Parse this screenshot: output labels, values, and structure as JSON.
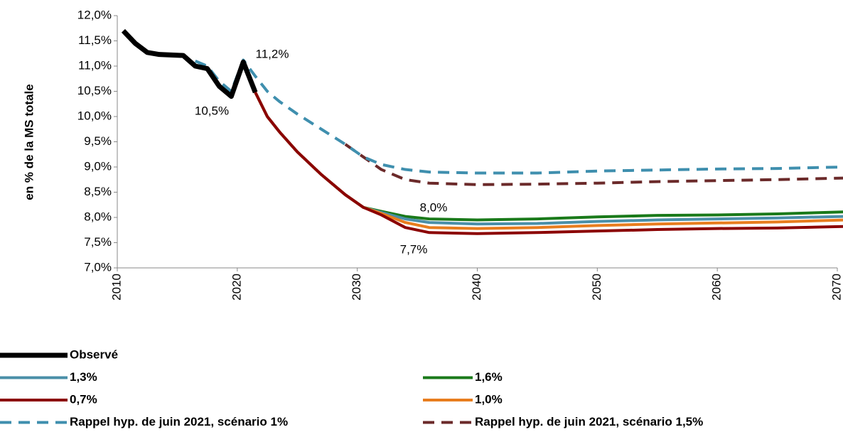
{
  "chart_data": {
    "type": "line",
    "y_label": "en % de la MS totale",
    "x": [
      2010.5,
      2011.5,
      2012.5,
      2013.5,
      2014.5,
      2015.5,
      2016.5,
      2017.5,
      2018.5,
      2019.5,
      2020.5,
      2021.5,
      2022.5,
      2023.5,
      2025,
      2027,
      2029,
      2030.5,
      2032,
      2034,
      2036,
      2040,
      2045,
      2050,
      2055,
      2060,
      2065,
      2070.5
    ],
    "series": [
      {
        "name": "Observé",
        "color": "#000000",
        "dashed": false,
        "values": [
          11.7,
          11.45,
          11.27,
          11.23,
          11.22,
          11.21,
          11.0,
          10.95,
          10.6,
          10.4,
          11.08,
          10.48,
          null,
          null,
          null,
          null,
          null,
          null,
          null,
          null,
          null,
          null,
          null,
          null,
          null,
          null,
          null,
          null
        ]
      },
      {
        "name": "1,6%",
        "color": "#1a7a1a",
        "dashed": false,
        "values": [
          null,
          null,
          null,
          null,
          null,
          null,
          null,
          null,
          null,
          null,
          null,
          10.48,
          10.0,
          9.7,
          9.3,
          8.85,
          8.45,
          8.2,
          8.12,
          8.02,
          7.97,
          7.95,
          7.97,
          8.01,
          8.04,
          8.05,
          8.07,
          8.11
        ]
      },
      {
        "name": "1,3%",
        "color": "#4a8fa8",
        "dashed": false,
        "values": [
          null,
          null,
          null,
          null,
          null,
          null,
          null,
          null,
          null,
          null,
          null,
          10.48,
          10.0,
          9.7,
          9.3,
          8.85,
          8.45,
          8.2,
          8.1,
          7.97,
          7.9,
          7.87,
          7.88,
          7.92,
          7.95,
          7.97,
          7.99,
          8.02
        ]
      },
      {
        "name": "1,0%",
        "color": "#e87d1e",
        "dashed": false,
        "values": [
          null,
          null,
          null,
          null,
          null,
          null,
          null,
          null,
          null,
          null,
          null,
          10.48,
          10.0,
          9.7,
          9.3,
          8.85,
          8.45,
          8.2,
          8.08,
          7.9,
          7.8,
          7.78,
          7.8,
          7.84,
          7.87,
          7.89,
          7.91,
          7.95
        ]
      },
      {
        "name": "0,7%",
        "color": "#8b0000",
        "dashed": false,
        "values": [
          null,
          null,
          null,
          null,
          null,
          null,
          null,
          null,
          null,
          null,
          null,
          10.48,
          10.0,
          9.7,
          9.3,
          8.85,
          8.45,
          8.2,
          8.05,
          7.8,
          7.7,
          7.68,
          7.7,
          7.73,
          7.76,
          7.78,
          7.79,
          7.82
        ]
      },
      {
        "name": "Rappel hyp. de juin 2021, scénario 1,5%",
        "color": "#6b2a2a",
        "dashed": true,
        "values": [
          null,
          null,
          null,
          null,
          null,
          null,
          null,
          null,
          null,
          null,
          null,
          null,
          null,
          null,
          null,
          null,
          9.45,
          9.2,
          8.95,
          8.75,
          8.68,
          8.65,
          8.66,
          8.68,
          8.71,
          8.73,
          8.75,
          8.78
        ]
      },
      {
        "name": "Rappel hyp. de juin 2021, scénario 1%",
        "color": "#3f8fae",
        "dashed": true,
        "values": [
          null,
          null,
          null,
          null,
          null,
          null,
          11.1,
          11.0,
          10.7,
          10.5,
          11.12,
          10.8,
          10.5,
          10.3,
          10.05,
          9.75,
          9.45,
          9.2,
          9.05,
          8.95,
          8.9,
          8.88,
          8.88,
          8.92,
          8.94,
          8.96,
          8.97,
          9.0
        ]
      }
    ],
    "annotations": [
      "11,2%",
      "10,5%",
      "8,0%",
      "7,7%"
    ],
    "xlim": [
      2010,
      2070
    ],
    "xticks": [
      2010,
      2020,
      2030,
      2040,
      2050,
      2060,
      2070
    ],
    "ylim": [
      7,
      12
    ],
    "yticks": [
      {
        "value": 7,
        "label": "7,0%"
      },
      {
        "value": 7.5,
        "label": "7,5%"
      },
      {
        "value": 8,
        "label": "8,0%"
      },
      {
        "value": 8.5,
        "label": "8,5%"
      },
      {
        "value": 9,
        "label": "9,0%"
      },
      {
        "value": 9.5,
        "label": "9,5%"
      },
      {
        "value": 10,
        "label": "10,0%"
      },
      {
        "value": 10.5,
        "label": "10,5%"
      },
      {
        "value": 11,
        "label": "11,0%"
      },
      {
        "value": 11.5,
        "label": "11,5%"
      },
      {
        "value": 12,
        "label": "12,0%"
      }
    ],
    "grid": false
  }
}
